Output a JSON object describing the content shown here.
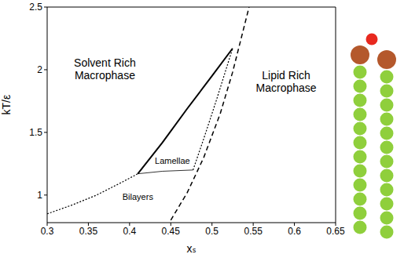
{
  "chart_data": {
    "type": "line",
    "x_label": "xₛ",
    "y_label": "kT/ε",
    "xlim": [
      0.3,
      0.65
    ],
    "xticks": [
      0.3,
      0.35,
      0.4,
      0.45,
      0.5,
      0.55,
      0.6,
      0.65
    ],
    "ylim": [
      0.78,
      2.5
    ],
    "yticks": [
      1,
      1.5,
      2,
      2.5
    ],
    "grid": false,
    "series": [
      {
        "color": "#000000",
        "line_style": "solid",
        "x": [
          0.41,
          0.44,
          0.47,
          0.5,
          0.525
        ],
        "values": [
          1.17,
          1.42,
          1.69,
          1.95,
          2.17
        ]
      },
      {
        "color": "#000000",
        "line_style": "dashed",
        "x": [
          0.45,
          0.47,
          0.49,
          0.51,
          0.525,
          0.545
        ],
        "values": [
          0.8,
          1.02,
          1.3,
          1.65,
          1.98,
          2.5
        ]
      },
      {
        "color": "#000000",
        "line_style": "dotted",
        "x": [
          0.3,
          0.33,
          0.36,
          0.39,
          0.41
        ],
        "values": [
          0.85,
          0.92,
          1.0,
          1.1,
          1.17
        ]
      },
      {
        "color": "#000000",
        "line_style": "thin",
        "x": [
          0.41,
          0.44,
          0.477
        ],
        "values": [
          1.17,
          1.19,
          1.2
        ]
      },
      {
        "color": "#000000",
        "line_style": "dotted",
        "x": [
          0.477,
          0.49,
          0.505,
          0.525
        ],
        "values": [
          1.2,
          1.45,
          1.75,
          2.17
        ]
      }
    ],
    "annotations": [
      {
        "text": "Solvent Rich\nMacrophase",
        "x": 0.37,
        "y": 2.0
      },
      {
        "text": "Lipid Rich\nMacrophase",
        "x": 0.59,
        "y": 1.9
      },
      {
        "text": "Lamellae",
        "x": 0.452,
        "y": 1.27
      },
      {
        "text": "Bilayers",
        "x": 0.41,
        "y": 0.98
      }
    ]
  }
}
